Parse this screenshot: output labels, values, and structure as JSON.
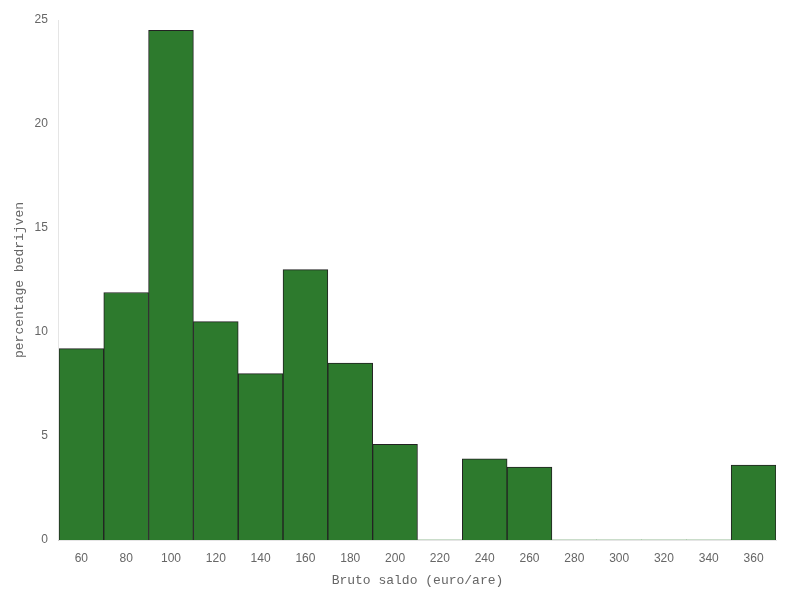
{
  "chart_data": {
    "type": "histogram",
    "xlabel": "Bruto saldo (euro/are)",
    "ylabel": "percentage bedrijven",
    "bins": [
      50,
      70,
      90,
      110,
      130,
      150,
      170,
      190,
      210,
      230,
      250,
      270,
      290,
      310,
      330,
      350,
      370
    ],
    "values": [
      9.2,
      11.9,
      24.5,
      10.5,
      8.0,
      13.0,
      8.5,
      4.6,
      0.0,
      3.9,
      3.5,
      0.0,
      0.0,
      0.0,
      0.0,
      3.6
    ],
    "color": "#2d7a2d",
    "xlim": [
      50,
      370
    ],
    "ylim": [
      0,
      25
    ],
    "xticks": [
      60,
      80,
      100,
      120,
      140,
      160,
      180,
      200,
      220,
      240,
      260,
      280,
      300,
      320,
      340,
      360
    ],
    "yticks": [
      0,
      5,
      10,
      15,
      20,
      25
    ],
    "grid": false
  }
}
